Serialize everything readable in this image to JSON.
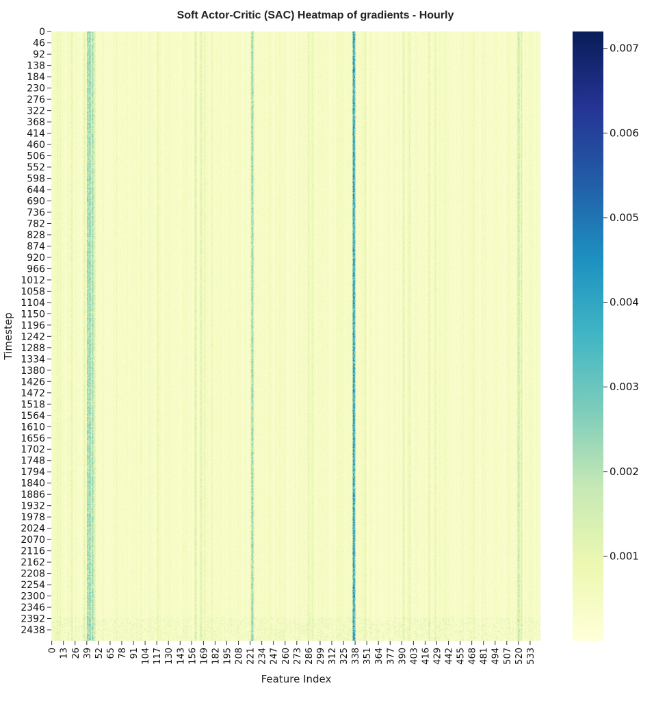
{
  "chart_data": {
    "type": "heatmap",
    "title": "Soft Actor-Critic (SAC) Heatmap of gradients - Hourly",
    "xlabel": "Feature Index",
    "ylabel": "Timestep",
    "x_range": [
      0,
      545
    ],
    "y_range": [
      0,
      2483
    ],
    "xtick_labels": [
      "0",
      "13",
      "26",
      "39",
      "52",
      "65",
      "78",
      "91",
      "104",
      "117",
      "130",
      "143",
      "156",
      "169",
      "182",
      "195",
      "208",
      "221",
      "234",
      "247",
      "260",
      "273",
      "286",
      "299",
      "312",
      "325",
      "338",
      "351",
      "364",
      "377",
      "390",
      "403",
      "416",
      "429",
      "442",
      "455",
      "468",
      "481",
      "494",
      "507",
      "520",
      "533"
    ],
    "ytick_labels": [
      "0",
      "46",
      "92",
      "138",
      "184",
      "230",
      "276",
      "322",
      "368",
      "414",
      "460",
      "506",
      "552",
      "598",
      "644",
      "690",
      "736",
      "782",
      "828",
      "874",
      "920",
      "966",
      "1012",
      "1058",
      "1104",
      "1150",
      "1196",
      "1242",
      "1288",
      "1334",
      "1380",
      "1426",
      "1472",
      "1518",
      "1564",
      "1610",
      "1656",
      "1702",
      "1748",
      "1794",
      "1840",
      "1886",
      "1932",
      "1978",
      "2024",
      "2070",
      "2116",
      "2162",
      "2208",
      "2254",
      "2300",
      "2346",
      "2392",
      "2438"
    ],
    "colorbar": {
      "colormap": "YlGnBu",
      "range": [
        0.0,
        0.0072
      ],
      "ticks": [
        0.001,
        0.002,
        0.003,
        0.004,
        0.005,
        0.006,
        0.007
      ],
      "tick_labels": [
        "0.001",
        "0.002",
        "0.003",
        "0.004",
        "0.005",
        "0.006",
        "0.007"
      ]
    },
    "column_intensity_features": [
      {
        "feature": 6,
        "value": 0.0009
      },
      {
        "feature": 9,
        "value": 0.0008
      },
      {
        "feature": 22,
        "value": 0.001
      },
      {
        "feature": 36,
        "value": 0.0012
      },
      {
        "feature": 40,
        "value": 0.003
      },
      {
        "feature": 42,
        "value": 0.0032
      },
      {
        "feature": 45,
        "value": 0.0026
      },
      {
        "feature": 47,
        "value": 0.0018
      },
      {
        "feature": 72,
        "value": 0.0008
      },
      {
        "feature": 118,
        "value": 0.0009
      },
      {
        "feature": 160,
        "value": 0.0013
      },
      {
        "feature": 166,
        "value": 0.0012
      },
      {
        "feature": 170,
        "value": 0.0011
      },
      {
        "feature": 178,
        "value": 0.001
      },
      {
        "feature": 223,
        "value": 0.003
      },
      {
        "feature": 286,
        "value": 0.0012
      },
      {
        "feature": 290,
        "value": 0.0011
      },
      {
        "feature": 336,
        "value": 0.004
      },
      {
        "feature": 337,
        "value": 0.0032
      },
      {
        "feature": 349,
        "value": 0.001
      },
      {
        "feature": 392,
        "value": 0.0013
      },
      {
        "feature": 398,
        "value": 0.0011
      },
      {
        "feature": 420,
        "value": 0.0012
      },
      {
        "feature": 427,
        "value": 0.0011
      },
      {
        "feature": 470,
        "value": 0.0009
      },
      {
        "feature": 520,
        "value": 0.002
      },
      {
        "feature": 523,
        "value": 0.0014
      }
    ],
    "baseline_value": 0.0004,
    "grid": false
  }
}
